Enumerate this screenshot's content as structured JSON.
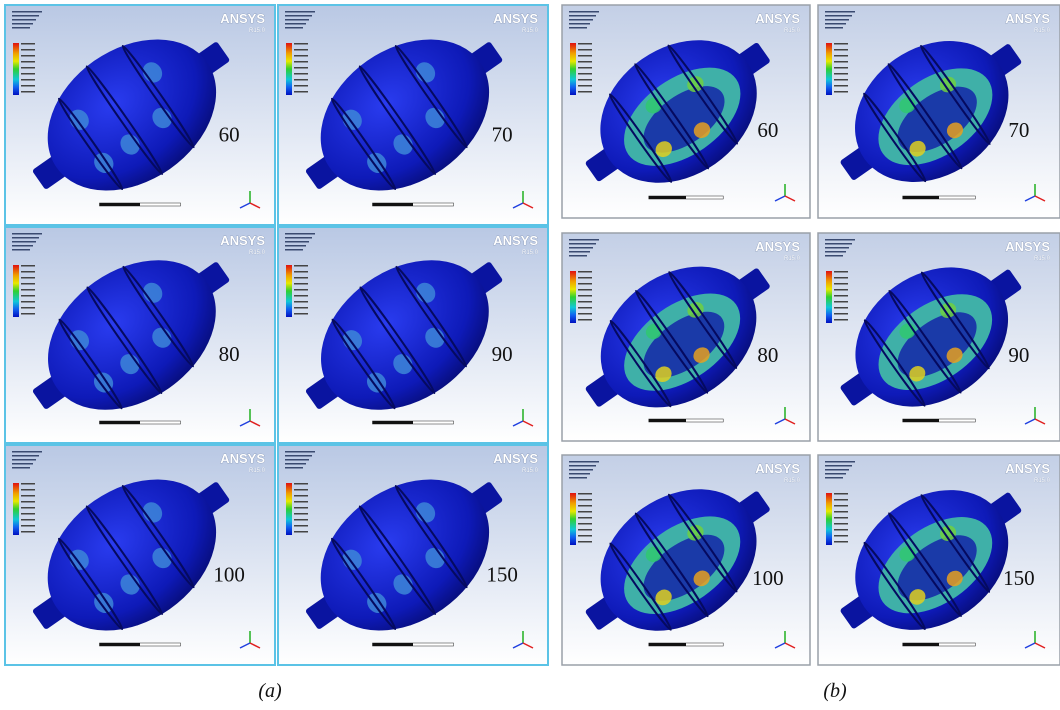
{
  "figure": {
    "logo": "ANSYS",
    "version": "R15.0",
    "panels_a": [
      {
        "label": "60"
      },
      {
        "label": "70"
      },
      {
        "label": "80"
      },
      {
        "label": "90"
      },
      {
        "label": "100"
      },
      {
        "label": "150"
      }
    ],
    "panels_b": [
      {
        "label": "60"
      },
      {
        "label": "70"
      },
      {
        "label": "80"
      },
      {
        "label": "90"
      },
      {
        "label": "100"
      },
      {
        "label": "150"
      }
    ],
    "caption_a": "(a)",
    "caption_b": "(b)"
  }
}
